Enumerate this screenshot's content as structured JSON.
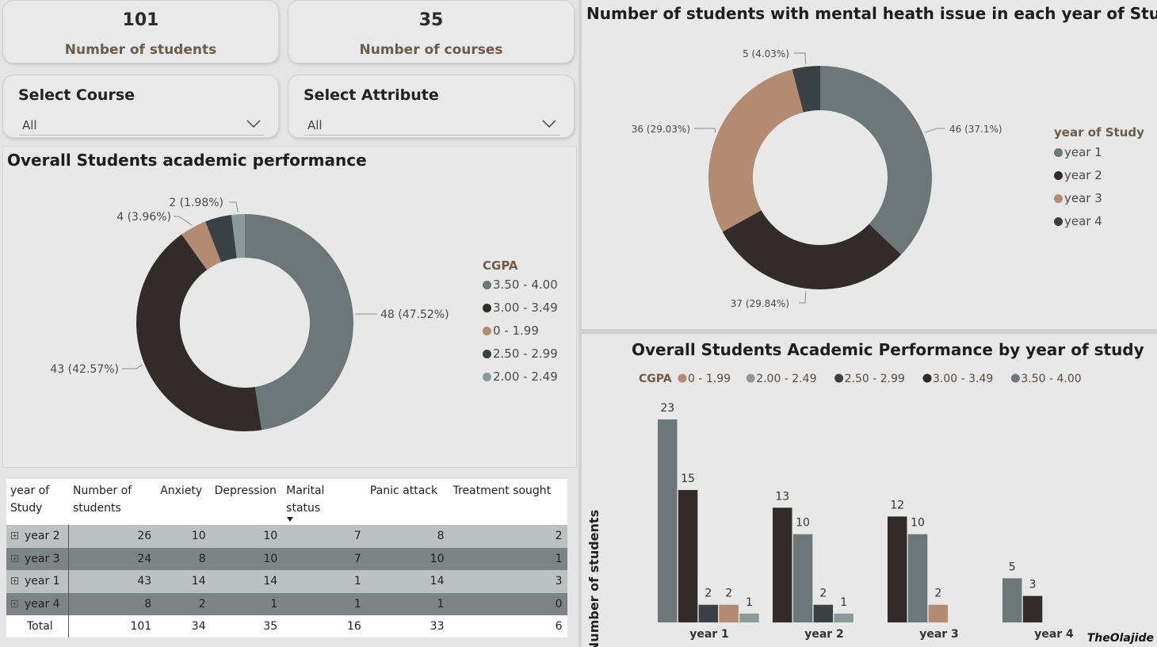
{
  "kpis": [
    {
      "value": "101",
      "label": "Number of students"
    },
    {
      "value": "35",
      "label": "Number of courses"
    }
  ],
  "slicers": [
    {
      "title": "Select Course",
      "value": "All"
    },
    {
      "title": "Select Attribute",
      "value": "All"
    }
  ],
  "chart_data": [
    {
      "type": "pie",
      "donut": true,
      "title": "Overall Students academic performance",
      "legend_title": "CGPA",
      "legend_position": "right",
      "slices": [
        {
          "label": "3.50 - 4.00",
          "value": 48,
          "display": "48 (47.52%)",
          "color": "#6b7778"
        },
        {
          "label": "3.00 - 3.49",
          "value": 43,
          "display": "43 (42.57%)",
          "color": "#332a2a"
        },
        {
          "label": "0 - 1.99",
          "value": 4,
          "display": "4 (3.96%)",
          "color": "#b38b71"
        },
        {
          "label": "2.50 - 2.99",
          "value": 4,
          "display": "",
          "color": "#384244"
        },
        {
          "label": "2.00 - 2.49",
          "value": 2,
          "display": "2 (1.98%)",
          "color": "#8a9a9b"
        }
      ],
      "slice_order": [
        0,
        1,
        2,
        3,
        4
      ]
    },
    {
      "type": "pie",
      "donut": true,
      "title": "Number of students with mental heath issue in each year of Study",
      "legend_title": "year of Study",
      "legend_position": "right",
      "slices": [
        {
          "label": "year 1",
          "value": 46,
          "display": "46 (37.1%)",
          "color": "#6b7778"
        },
        {
          "label": "year 2",
          "value": 37,
          "display": "37 (29.84%)",
          "color": "#332a2a"
        },
        {
          "label": "year 3",
          "value": 36,
          "display": "36 (29.03%)",
          "color": "#b38b71"
        },
        {
          "label": "year 4",
          "value": 5,
          "display": "5 (4.03%)",
          "color": "#384244"
        }
      ]
    },
    {
      "type": "bar",
      "title": "Overall Students Academic Performance by year of study",
      "ylabel": "Number of students",
      "xlabel": "",
      "legend_title": "CGPA",
      "legend_position": "top",
      "ylim": [
        0,
        23
      ],
      "categories": [
        "year 1",
        "year 2",
        "year 3",
        "year 4"
      ],
      "series_legend": [
        {
          "name": "0 - 1.99",
          "color": "#b38b71"
        },
        {
          "name": "2.00 - 2.49",
          "color": "#8a9a9b"
        },
        {
          "name": "2.50 - 2.99",
          "color": "#384244"
        },
        {
          "name": "3.00 - 3.49",
          "color": "#332a2a"
        },
        {
          "name": "3.50 - 4.00",
          "color": "#6b7778"
        }
      ],
      "groups": [
        {
          "category": "year 1",
          "bars": [
            {
              "series": "3.50 - 4.00",
              "value": 23
            },
            {
              "series": "3.00 - 3.49",
              "value": 15
            },
            {
              "series": "2.50 - 2.99",
              "value": 2
            },
            {
              "series": "0 - 1.99",
              "value": 2
            },
            {
              "series": "2.00 - 2.49",
              "value": 1
            }
          ]
        },
        {
          "category": "year 2",
          "bars": [
            {
              "series": "3.00 - 3.49",
              "value": 13
            },
            {
              "series": "3.50 - 4.00",
              "value": 10
            },
            {
              "series": "2.50 - 2.99",
              "value": 2
            },
            {
              "series": "2.00 - 2.49",
              "value": 1
            }
          ]
        },
        {
          "category": "year 3",
          "bars": [
            {
              "series": "3.00 - 3.49",
              "value": 12
            },
            {
              "series": "3.50 - 4.00",
              "value": 10
            },
            {
              "series": "0 - 1.99",
              "value": 2
            }
          ]
        },
        {
          "category": "year 4",
          "bars": [
            {
              "series": "3.50 - 4.00",
              "value": 5
            },
            {
              "series": "3.00 - 3.49",
              "value": 3
            }
          ]
        }
      ]
    }
  ],
  "table": {
    "headers": [
      "year of\nStudy",
      "Number of\nstudents",
      "Anxiety",
      "Depression",
      "Marital\nstatus",
      "Panic attack",
      "Treatment sought"
    ],
    "sort_indicator_column": 4,
    "rows": [
      [
        "year 2",
        "26",
        "10",
        "10",
        "7",
        "8",
        "2"
      ],
      [
        "year 3",
        "24",
        "8",
        "10",
        "7",
        "10",
        "1"
      ],
      [
        "year 1",
        "43",
        "14",
        "14",
        "1",
        "14",
        "3"
      ],
      [
        "year 4",
        "8",
        "2",
        "1",
        "1",
        "1",
        "0"
      ]
    ],
    "total": [
      "Total",
      "101",
      "34",
      "35",
      "16",
      "33",
      "6"
    ]
  },
  "watermark": "TheOlajide"
}
